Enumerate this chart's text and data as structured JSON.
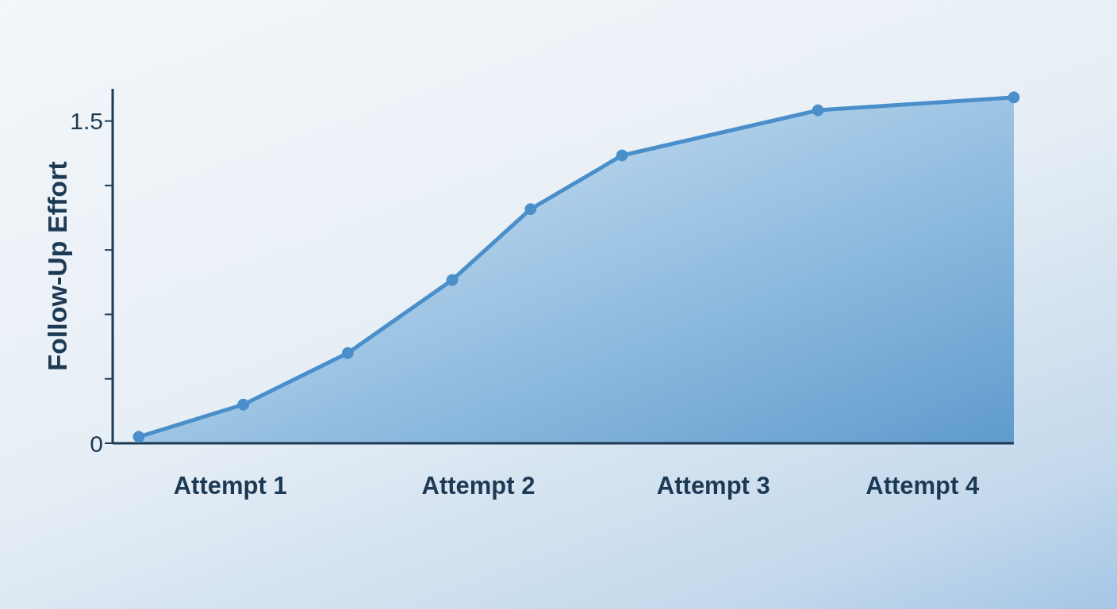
{
  "chart_data": {
    "type": "area",
    "ylabel": "Follow-Up Effort",
    "categories": [
      null,
      null,
      null,
      null,
      null,
      null,
      null,
      null,
      null,
      "Attempt 1",
      null,
      null,
      null,
      null,
      null,
      null,
      null,
      null,
      null,
      null,
      null,
      null,
      null,
      null,
      null,
      null,
      null,
      null,
      "Attempt 2",
      null,
      null,
      null,
      null,
      null,
      null,
      null,
      null,
      null,
      null,
      null,
      null,
      null,
      null,
      null,
      null,
      null,
      "Attempt 3",
      null,
      null,
      null,
      null,
      null,
      null,
      null,
      null,
      null,
      null,
      null,
      null,
      null,
      null,
      null,
      "Attempt 4",
      null,
      null,
      null,
      null,
      null,
      null,
      null
    ],
    "values": [
      null,
      null,
      0.03,
      null,
      null,
      null,
      null,
      null,
      null,
      null,
      0.18,
      null,
      null,
      null,
      null,
      null,
      null,
      null,
      0.42,
      null,
      null,
      null,
      null,
      null,
      null,
      null,
      0.76,
      null,
      null,
      null,
      null,
      null,
      1.09,
      null,
      null,
      null,
      null,
      null,
      null,
      1.34,
      null,
      null,
      null,
      null,
      null,
      null,
      null,
      null,
      null,
      null,
      null,
      null,
      null,
      null,
      1.55,
      null,
      null,
      null,
      null,
      null,
      null,
      null,
      null,
      null,
      null,
      null,
      null,
      null,
      null,
      1.61
    ],
    "color": "#4a8fca",
    "marker": "circle",
    "ylim": [
      0,
      1.65
    ],
    "yticks": [
      0,
      {
        "value": 0.3,
        "label": null
      },
      {
        "value": 0.6,
        "label": null
      },
      {
        "value": 0.9,
        "label": null
      },
      {
        "value": 1.2,
        "label": null
      },
      1.5
    ]
  }
}
